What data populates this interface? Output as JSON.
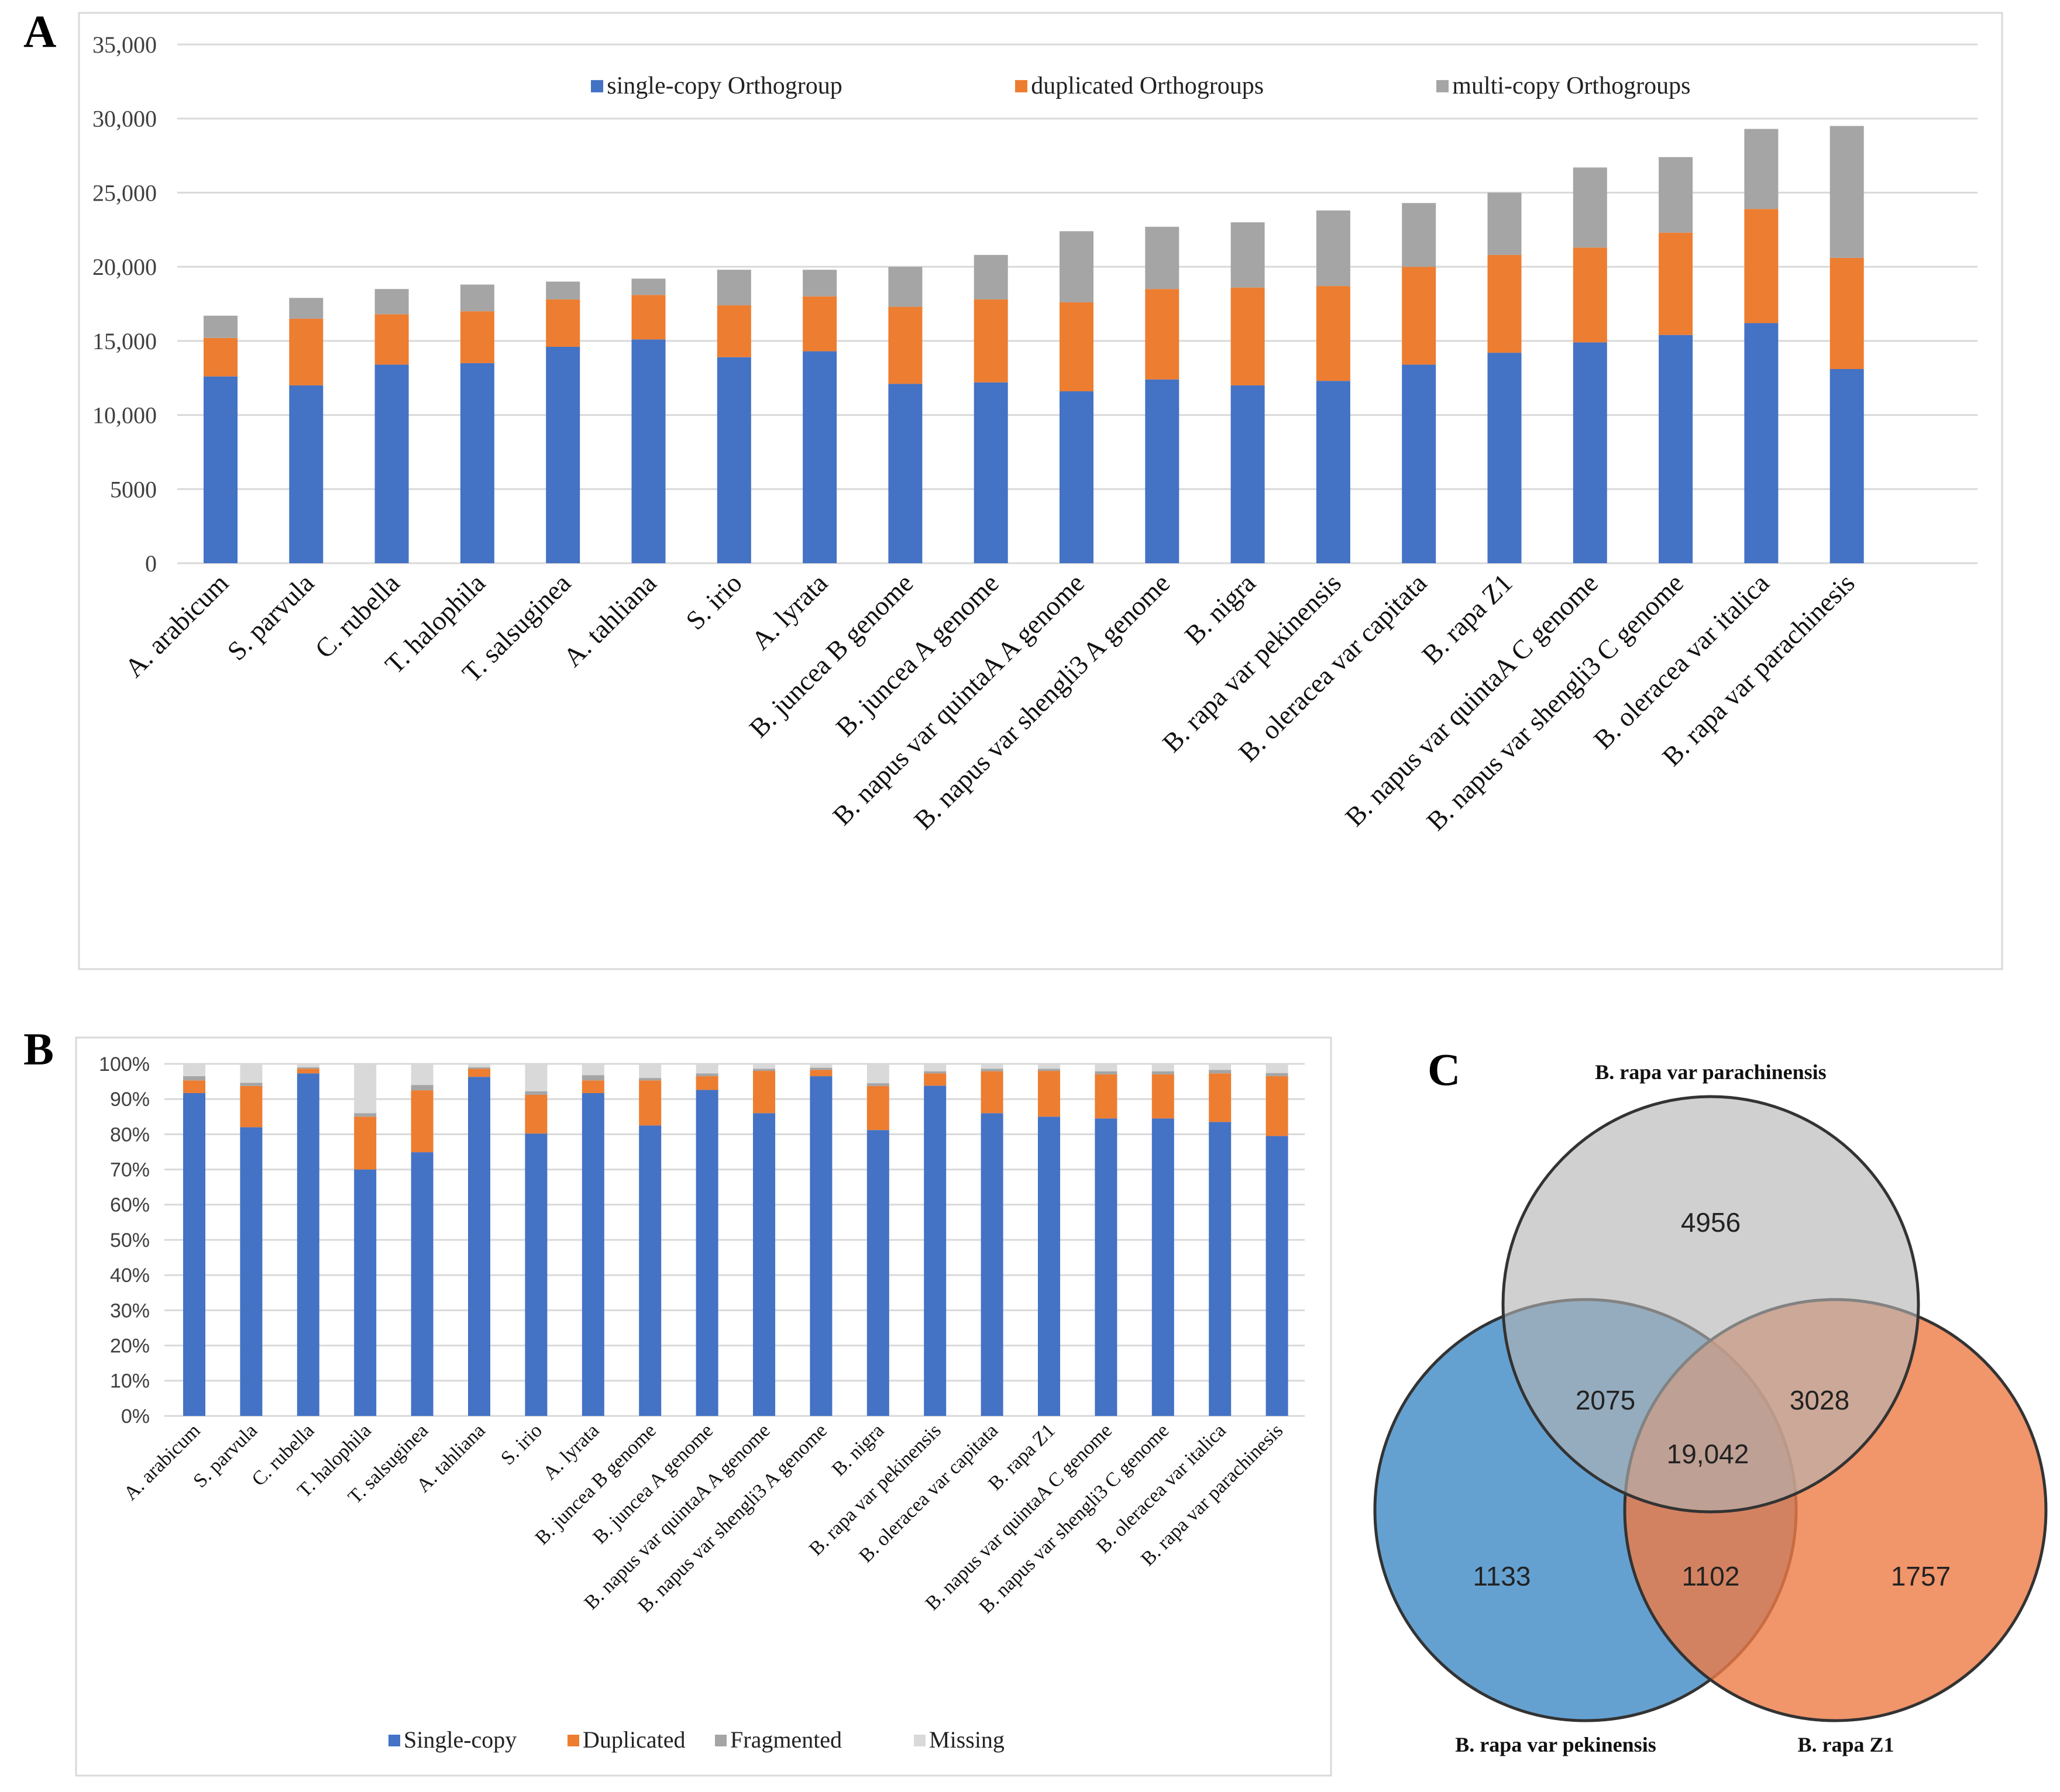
{
  "panels": {
    "a": "A",
    "b": "B",
    "c": "C"
  },
  "chart_data": [
    {
      "type": "bar",
      "stacked": true,
      "panel": "A",
      "title": "",
      "xlabel": "",
      "ylabel": "",
      "ylim": [
        0,
        35000
      ],
      "yticks": [
        "0",
        "5000",
        "10,000",
        "15,000",
        "20,000",
        "25,000",
        "30,000",
        "35,000"
      ],
      "ytick_values": [
        0,
        5000,
        10000,
        15000,
        20000,
        25000,
        30000,
        35000
      ],
      "grid": true,
      "legend_position": "top",
      "categories": [
        "A. arabicum",
        "S. parvula",
        "C. rubella",
        "T. halophila",
        "T. salsuginea",
        "A. tahliana",
        "S. irio",
        "A. lyrata",
        "B. juncea B genome",
        "B. juncea A genome",
        "B. napus var quintaA A genome",
        "B. napus var shengli3 A genome",
        "B. nigra",
        "B. rapa var pekinensis",
        "B. oleracea var capitata",
        "B. rapa Z1",
        "B. napus var quintaA C genome",
        "B. napus var shengli3 C genome",
        "B. oleracea var italica",
        "B. rapa var parachinesis"
      ],
      "series": [
        {
          "name": "single-copy Orthogroup",
          "color": "#4472C4",
          "values": [
            12600,
            12000,
            13400,
            13500,
            14600,
            15100,
            13900,
            14300,
            12100,
            12200,
            11600,
            12400,
            12000,
            12300,
            13400,
            14200,
            14900,
            15400,
            16200,
            13100
          ]
        },
        {
          "name": "duplicated Orthogroups",
          "color": "#ED7D31",
          "values": [
            2600,
            4500,
            3400,
            3500,
            3200,
            3000,
            3500,
            3700,
            5200,
            5600,
            6000,
            6100,
            6600,
            6400,
            6600,
            6600,
            6400,
            6900,
            7700,
            7500
          ]
        },
        {
          "name": "multi-copy Orthogroups",
          "color": "#A5A5A5",
          "values": [
            1500,
            1400,
            1700,
            1800,
            1200,
            1100,
            2400,
            1800,
            2700,
            3000,
            4800,
            4200,
            4400,
            5100,
            4300,
            4200,
            5400,
            5100,
            5400,
            8900
          ]
        }
      ]
    },
    {
      "type": "bar",
      "stacked": true,
      "panel": "B",
      "title": "",
      "xlabel": "",
      "ylabel": "",
      "ylim": [
        0,
        100
      ],
      "yticks": [
        "0%",
        "10%",
        "20%",
        "30%",
        "40%",
        "50%",
        "60%",
        "70%",
        "80%",
        "90%",
        "100%"
      ],
      "ytick_values": [
        0,
        10,
        20,
        30,
        40,
        50,
        60,
        70,
        80,
        90,
        100
      ],
      "grid": true,
      "legend_position": "bottom",
      "categories": [
        "A. arabicum",
        "S. parvula",
        "C. rubella",
        "T. halophila",
        "T. salsuginea",
        "A. tahliana",
        "S. irio",
        "A. lyrata",
        "B. juncea B genome",
        "B. juncea A genome",
        "B. napus var quintaA A genome",
        "B. napus var shengli3 A genome",
        "B. nigra",
        "B. rapa var pekinensis",
        "B. oleracea var capitata",
        "B. rapa Z1",
        "B. napus var quintaA C genome",
        "B. napus var shengli3 C genome",
        "B. oleracea var italica",
        "B. rapa var parachinesis"
      ],
      "series": [
        {
          "name": "Single-copy",
          "color": "#4472C4",
          "values": [
            91.7,
            82.0,
            97.3,
            70.0,
            74.9,
            96.3,
            80.2,
            91.7,
            82.5,
            92.6,
            86.0,
            96.5,
            81.2,
            93.8,
            86.0,
            85.0,
            84.5,
            84.5,
            83.5,
            79.5
          ]
        },
        {
          "name": "Duplicated",
          "color": "#ED7D31",
          "values": [
            3.6,
            11.7,
            1.3,
            15.0,
            17.6,
            2.3,
            11.0,
            3.6,
            12.8,
            3.9,
            12.0,
            1.8,
            12.5,
            3.5,
            11.9,
            13.0,
            12.5,
            12.5,
            13.8,
            17.0
          ]
        },
        {
          "name": "Fragmented",
          "color": "#A5A5A5",
          "values": [
            1.2,
            0.9,
            0.4,
            1.0,
            1.5,
            0.4,
            1.0,
            1.5,
            0.7,
            0.8,
            0.6,
            0.6,
            0.8,
            0.6,
            0.7,
            0.6,
            0.9,
            0.9,
            1.0,
            0.9
          ]
        },
        {
          "name": "Missing",
          "color": "#D9D9D9",
          "values": [
            3.5,
            5.4,
            1.0,
            14.0,
            6.0,
            1.0,
            7.8,
            3.2,
            4.0,
            2.7,
            1.4,
            1.1,
            5.5,
            2.1,
            1.4,
            1.4,
            2.1,
            2.1,
            1.7,
            2.6
          ]
        }
      ]
    },
    {
      "type": "venn",
      "panel": "C",
      "sets": [
        {
          "name": "B. rapa var parachinensis",
          "color": "#B3B3B3"
        },
        {
          "name": "B. rapa var pekinensis",
          "color": "#4A90C8"
        },
        {
          "name": "B. rapa Z1",
          "color": "#EE7B45"
        }
      ],
      "regions": {
        "parachinensis_only": "4956",
        "parachinensis_pekinensis": "2075",
        "parachinensis_z1": "3028",
        "all_three": "19,042",
        "pekinensis_only": "1133",
        "pekinensis_z1": "1102",
        "z1_only": "1757"
      }
    }
  ]
}
